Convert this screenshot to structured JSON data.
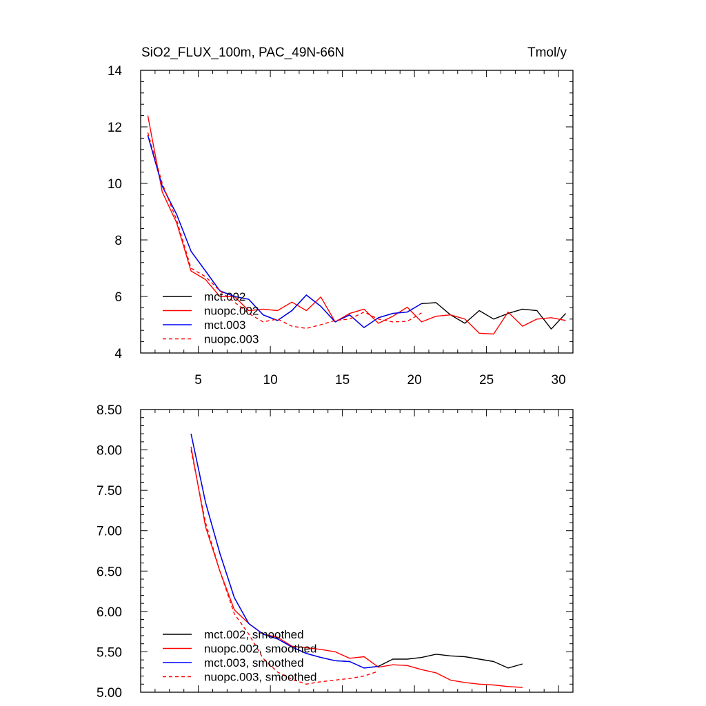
{
  "chart_data": [
    {
      "type": "line",
      "title": "SiO2_FLUX_100m, PAC_49N-66N",
      "units": "Tmol/y",
      "xlim": [
        1,
        31
      ],
      "ylim": [
        4,
        14
      ],
      "xticks": [
        5,
        10,
        15,
        20,
        25,
        30
      ],
      "yticks": [
        4,
        6,
        8,
        10,
        12,
        14
      ],
      "ytick_labels": [
        "4",
        "6",
        "8",
        "10",
        "12",
        "14"
      ],
      "legend_position": "lower-left",
      "series": [
        {
          "name": "mct.002",
          "color": "#000000",
          "dash": "solid",
          "x": [
            1.5,
            2.5,
            3.5,
            4.5,
            5.5,
            6.5,
            7.5,
            8.5,
            9.5,
            10.5,
            11.5,
            12.5,
            13.5,
            14.5,
            15.5,
            16.5,
            17.5,
            18.5,
            19.5,
            20.5,
            21.5,
            22.5,
            23.5,
            24.5,
            25.5,
            26.5,
            27.5,
            28.5,
            29.5,
            30.5
          ],
          "y": [
            11.7,
            9.9,
            8.9,
            7.6,
            6.9,
            6.2,
            6.0,
            5.9,
            5.35,
            5.15,
            5.5,
            6.05,
            5.65,
            5.1,
            5.35,
            4.9,
            5.25,
            5.4,
            5.45,
            5.75,
            5.78,
            5.35,
            5.05,
            5.5,
            5.2,
            5.4,
            5.55,
            5.5,
            4.85,
            5.4
          ]
        },
        {
          "name": "nuopc.002",
          "color": "#ff0000",
          "dash": "solid",
          "x": [
            1.5,
            2.5,
            3.5,
            4.5,
            5.5,
            6.5,
            7.5,
            8.5,
            9.5,
            10.5,
            11.5,
            12.5,
            13.5,
            14.5,
            15.5,
            16.5,
            17.5,
            18.5,
            19.5,
            20.5,
            21.5,
            22.5,
            23.5,
            24.5,
            25.5,
            26.5,
            27.5,
            28.5,
            29.5,
            30.5
          ],
          "y": [
            12.4,
            9.7,
            8.6,
            6.9,
            6.6,
            6.0,
            6.0,
            5.5,
            5.55,
            5.5,
            5.8,
            5.5,
            5.98,
            5.1,
            5.4,
            5.55,
            5.05,
            5.3,
            5.62,
            5.1,
            5.3,
            5.35,
            5.2,
            4.7,
            4.67,
            5.45,
            4.95,
            5.2,
            5.25,
            5.15
          ]
        },
        {
          "name": "mct.003",
          "color": "#0000ff",
          "dash": "solid",
          "x": [
            1.5,
            2.5,
            3.5,
            4.5,
            5.5,
            6.5,
            7.5,
            8.5,
            9.5,
            10.5,
            11.5,
            12.5,
            13.5,
            14.5,
            15.5,
            16.5,
            17.5,
            18.5,
            19.5,
            20.5
          ],
          "y": [
            11.7,
            9.9,
            8.9,
            7.6,
            6.9,
            6.2,
            6.0,
            5.9,
            5.35,
            5.15,
            5.5,
            6.05,
            5.65,
            5.1,
            5.35,
            4.9,
            5.25,
            5.4,
            5.45,
            5.75
          ]
        },
        {
          "name": "nuopc.003",
          "color": "#ff0000",
          "dash": "dashed",
          "x": [
            1.5,
            2.5,
            3.5,
            4.5,
            5.5,
            6.5,
            7.5,
            8.5,
            9.5,
            10.5,
            11.5,
            12.5,
            13.5,
            14.5,
            15.5,
            16.5,
            17.5,
            18.5,
            19.5,
            20.5
          ],
          "y": [
            11.8,
            10.0,
            8.7,
            7.0,
            6.7,
            6.2,
            5.8,
            5.4,
            5.1,
            5.2,
            4.95,
            4.87,
            5.0,
            5.15,
            5.2,
            5.45,
            5.2,
            5.1,
            5.12,
            5.42
          ]
        }
      ]
    },
    {
      "type": "line",
      "xlim": [
        1,
        31
      ],
      "ylim": [
        5.0,
        8.5
      ],
      "xticks": [
        5,
        10,
        15,
        20,
        25,
        30
      ],
      "yticks": [
        5.0,
        5.5,
        6.0,
        6.5,
        7.0,
        7.5,
        8.0,
        8.5
      ],
      "ytick_labels": [
        "5.00",
        "5.50",
        "6.00",
        "6.50",
        "7.00",
        "7.50",
        "8.00",
        "8.50"
      ],
      "legend_position": "lower-left",
      "series": [
        {
          "name": "mct.002, smoothed",
          "color": "#000000",
          "dash": "solid",
          "x": [
            4.5,
            5.5,
            6.5,
            7.5,
            8.5,
            9.5,
            10.5,
            11.5,
            12.5,
            13.5,
            14.5,
            15.5,
            16.5,
            17.5,
            18.5,
            19.5,
            20.5,
            21.5,
            22.5,
            23.5,
            24.5,
            25.5,
            26.5,
            27.5
          ],
          "y": [
            8.2,
            7.35,
            6.72,
            6.17,
            5.85,
            5.72,
            5.66,
            5.56,
            5.48,
            5.43,
            5.39,
            5.38,
            5.3,
            5.32,
            5.41,
            5.41,
            5.43,
            5.47,
            5.45,
            5.44,
            5.41,
            5.38,
            5.3,
            5.35
          ]
        },
        {
          "name": "nuopc.002, smoothed",
          "color": "#ff0000",
          "dash": "solid",
          "x": [
            4.5,
            5.5,
            6.5,
            7.5,
            8.5,
            9.5,
            10.5,
            11.5,
            12.5,
            13.5,
            14.5,
            15.5,
            16.5,
            17.5,
            18.5,
            19.5,
            20.5,
            21.5,
            22.5,
            23.5,
            24.5,
            25.5,
            26.5,
            27.5
          ],
          "y": [
            8.04,
            7.05,
            6.5,
            6.02,
            5.85,
            5.72,
            5.68,
            5.57,
            5.55,
            5.53,
            5.5,
            5.42,
            5.44,
            5.31,
            5.34,
            5.33,
            5.28,
            5.24,
            5.15,
            5.12,
            5.1,
            5.09,
            5.07,
            5.06
          ]
        },
        {
          "name": "mct.003, smoothed",
          "color": "#0000ff",
          "dash": "solid",
          "x": [
            4.5,
            5.5,
            6.5,
            7.5,
            8.5,
            9.5,
            10.5,
            11.5,
            12.5,
            13.5,
            14.5,
            15.5,
            16.5,
            17.5
          ],
          "y": [
            8.2,
            7.35,
            6.72,
            6.17,
            5.85,
            5.72,
            5.66,
            5.56,
            5.48,
            5.43,
            5.39,
            5.38,
            5.3,
            5.32
          ]
        },
        {
          "name": "nuopc.003, smoothed",
          "color": "#ff0000",
          "dash": "dashed",
          "x": [
            4.5,
            5.5,
            6.5,
            7.5,
            8.5,
            9.5,
            10.5,
            11.5,
            12.5,
            13.5,
            14.5,
            15.5,
            16.5,
            17.5
          ],
          "y": [
            8.0,
            7.1,
            6.5,
            5.97,
            5.72,
            5.42,
            5.25,
            5.16,
            5.1,
            5.13,
            5.15,
            5.17,
            5.2,
            5.26
          ]
        }
      ]
    }
  ]
}
